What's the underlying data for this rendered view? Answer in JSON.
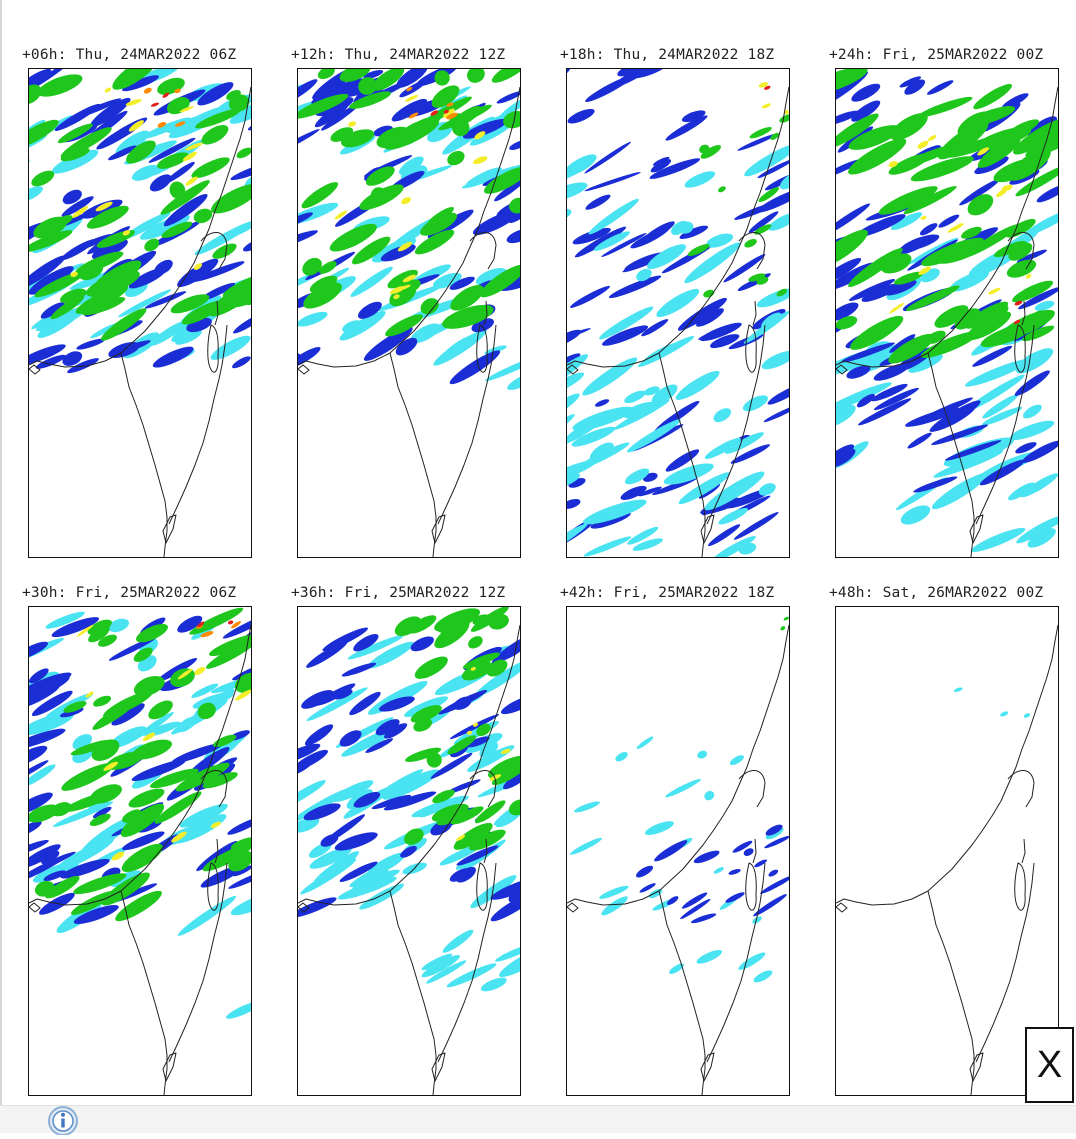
{
  "colors": {
    "light_blue": "#49e3f1",
    "blue": "#1b2ed6",
    "green": "#1fc71c",
    "yellow": "#f4ee2a",
    "orange": "#ff8a00",
    "red": "#e0201a",
    "coast": "#222222"
  },
  "panels": [
    {
      "title": "+06h: Thu, 24MAR2022 06Z",
      "coverage": "heavy-north"
    },
    {
      "title": "+12h: Thu, 24MAR2022 12Z",
      "coverage": "heavy-north"
    },
    {
      "title": "+18h: Thu, 24MAR2022 18Z",
      "coverage": "broad-blue"
    },
    {
      "title": "+24h: Fri, 25MAR2022 00Z",
      "coverage": "heavy-broad"
    },
    {
      "title": "+30h: Fri, 25MAR2022 06Z",
      "coverage": "heavy-central"
    },
    {
      "title": "+36h: Fri, 25MAR2022 12Z",
      "coverage": "moderate-east"
    },
    {
      "title": "+42h: Fri, 25MAR2022 18Z",
      "coverage": "light"
    },
    {
      "title": "+48h: Sat, 26MAR2022 00Z",
      "coverage": "none"
    }
  ],
  "controls": {
    "close_label": "X",
    "info_icon": "info-icon"
  }
}
